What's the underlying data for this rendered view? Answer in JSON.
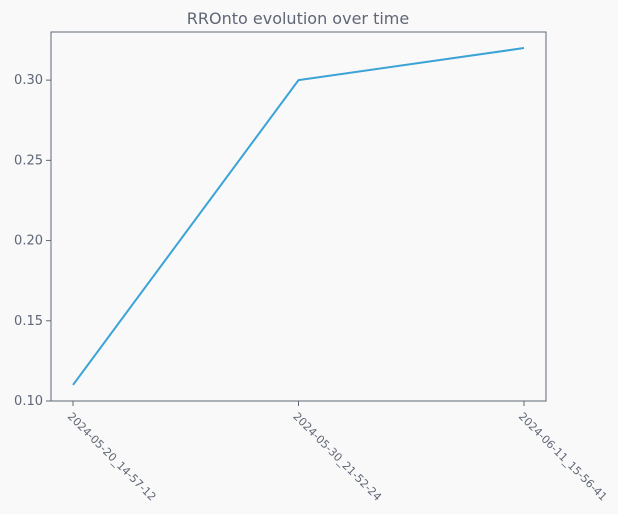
{
  "chart_data": {
    "type": "line",
    "title": "RROnto evolution over time",
    "xlabel": "",
    "ylabel": "",
    "x": [
      "2024-05-20_14-57-12",
      "2024-05-30_21-52-24",
      "2024-06-11_15-56-41"
    ],
    "series": [
      {
        "values": [
          0.11,
          0.3,
          0.32
        ],
        "color": "#3ba3d6"
      }
    ],
    "ylim": [
      0.1,
      0.33
    ],
    "yticks": [
      "0.10",
      "0.15",
      "0.20",
      "0.25",
      "0.30"
    ],
    "grid": false,
    "background": "#f9f9f9",
    "axis_color": "#5f6675"
  }
}
